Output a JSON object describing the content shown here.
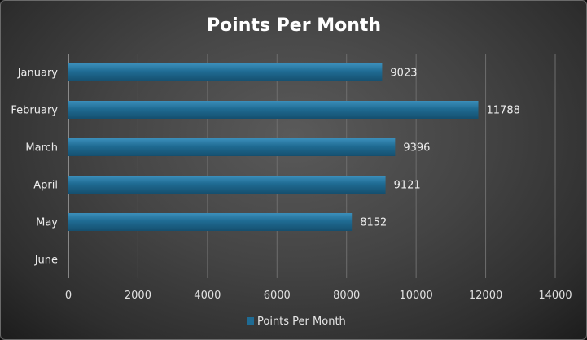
{
  "chart_data": {
    "type": "bar",
    "orientation": "horizontal",
    "title": "Points Per Month",
    "categories": [
      "January",
      "February",
      "March",
      "April",
      "May",
      "June"
    ],
    "series": [
      {
        "name": "Points Per Month",
        "values": [
          9023,
          11788,
          9396,
          9121,
          8152,
          null
        ]
      }
    ],
    "data_labels": [
      "9023",
      "11788",
      "9396",
      "9121",
      "8152",
      ""
    ],
    "x_ticks": [
      "0",
      "2000",
      "4000",
      "6000",
      "8000",
      "10000",
      "12000",
      "14000"
    ],
    "xlim": [
      0,
      14000
    ],
    "grid": true,
    "legend_position": "bottom",
    "bar_color": "#1f6b93"
  }
}
